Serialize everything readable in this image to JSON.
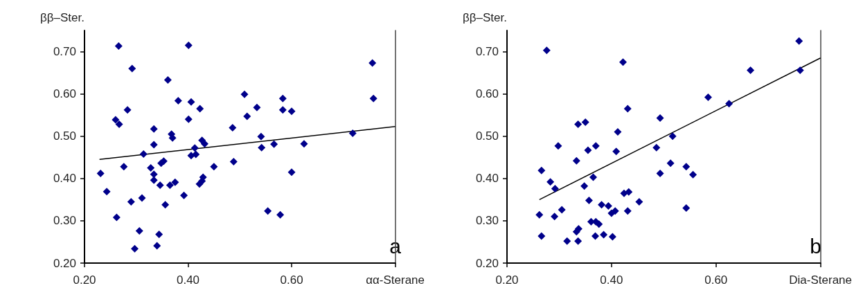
{
  "chart_data": [
    {
      "type": "scatter",
      "xlabel": "αα-Sterane",
      "ylabel": "ββ–Ster.",
      "annotations": [
        "a"
      ],
      "marker": "diamond",
      "grid": false,
      "xlim": [
        0.2,
        0.8
      ],
      "ylim": [
        0.2,
        0.75
      ],
      "xticks": [
        {
          "value": 0.2,
          "label": "0.20"
        },
        {
          "value": 0.4,
          "label": "0.40"
        },
        {
          "value": 0.6,
          "label": "0.60"
        },
        {
          "value": 0.8,
          "label": null
        }
      ],
      "yticks": [
        {
          "value": 0.2,
          "label": "0.20"
        },
        {
          "value": 0.3,
          "label": "0.30"
        },
        {
          "value": 0.4,
          "label": "0.40"
        },
        {
          "value": 0.5,
          "label": "0.50"
        },
        {
          "value": 0.6,
          "label": "0.60"
        },
        {
          "value": 0.7,
          "label": "0.70"
        }
      ],
      "series": [
        {
          "color": "#00008b",
          "x": [
            0.266,
            0.401,
            0.292,
            0.361,
            0.381,
            0.406,
            0.423,
            0.283,
            0.26,
            0.267,
            0.401,
            0.334,
            0.486,
            0.368,
            0.37,
            0.427,
            0.432,
            0.334,
            0.413,
            0.406,
            0.415,
            0.314,
            0.353,
            0.348,
            0.488,
            0.276,
            0.45,
            0.231,
            0.328,
            0.334,
            0.429,
            0.334,
            0.427,
            0.422,
            0.375,
            0.365,
            0.346,
            0.243,
            0.392,
            0.29,
            0.311,
            0.356,
            0.262,
            0.306,
            0.344,
            0.34,
            0.297,
            0.756,
            0.758,
            0.509,
            0.583,
            0.533,
            0.583,
            0.6,
            0.514,
            0.541,
            0.542,
            0.566,
            0.624,
            0.718,
            0.6,
            0.554,
            0.578
          ],
          "values": [
            0.713,
            0.715,
            0.66,
            0.633,
            0.584,
            0.581,
            0.565,
            0.562,
            0.539,
            0.528,
            0.54,
            0.517,
            0.52,
            0.505,
            0.496,
            0.49,
            0.482,
            0.48,
            0.472,
            0.454,
            0.457,
            0.458,
            0.441,
            0.436,
            0.44,
            0.428,
            0.428,
            0.412,
            0.425,
            0.41,
            0.403,
            0.396,
            0.394,
            0.387,
            0.391,
            0.384,
            0.384,
            0.369,
            0.36,
            0.345,
            0.354,
            0.338,
            0.308,
            0.276,
            0.268,
            0.241,
            0.234,
            0.673,
            0.589,
            0.599,
            0.589,
            0.568,
            0.562,
            0.559,
            0.547,
            0.499,
            0.473,
            0.481,
            0.482,
            0.507,
            0.415,
            0.323,
            0.314
          ]
        },
        {
          "type": "line",
          "marker": "none",
          "color": "#000000",
          "x": [
            0.229,
            0.8
          ],
          "values": [
            0.445,
            0.523
          ]
        }
      ]
    },
    {
      "type": "scatter",
      "xlabel": "Dia-Sterane",
      "ylabel": "ββ–Ster.",
      "annotations": [
        "b"
      ],
      "marker": "diamond",
      "grid": false,
      "xlim": [
        0.2,
        0.8
      ],
      "ylim": [
        0.2,
        0.75
      ],
      "xticks": [
        {
          "value": 0.2,
          "label": "0.20"
        },
        {
          "value": 0.4,
          "label": "0.40"
        },
        {
          "value": 0.6,
          "label": "0.60"
        },
        {
          "value": 0.8,
          "label": null
        }
      ],
      "yticks": [
        {
          "value": 0.2,
          "label": "0.20"
        },
        {
          "value": 0.3,
          "label": "0.30"
        },
        {
          "value": 0.4,
          "label": "0.40"
        },
        {
          "value": 0.5,
          "label": "0.50"
        },
        {
          "value": 0.6,
          "label": "0.60"
        },
        {
          "value": 0.7,
          "label": "0.70"
        }
      ],
      "series": [
        {
          "color": "#00008b",
          "x": [
            0.276,
            0.422,
            0.431,
            0.336,
            0.35,
            0.412,
            0.298,
            0.37,
            0.355,
            0.409,
            0.333,
            0.266,
            0.365,
            0.283,
            0.292,
            0.348,
            0.357,
            0.381,
            0.394,
            0.424,
            0.433,
            0.305,
            0.262,
            0.291,
            0.361,
            0.37,
            0.376,
            0.4,
            0.407,
            0.431,
            0.453,
            0.543,
            0.333,
            0.337,
            0.266,
            0.315,
            0.336,
            0.369,
            0.385,
            0.402,
            0.759,
            0.761,
            0.666,
            0.585,
            0.625,
            0.493,
            0.517,
            0.486,
            0.513,
            0.493,
            0.543,
            0.556
          ],
          "values": [
            0.703,
            0.675,
            0.565,
            0.528,
            0.533,
            0.51,
            0.477,
            0.477,
            0.467,
            0.464,
            0.442,
            0.419,
            0.403,
            0.392,
            0.376,
            0.382,
            0.348,
            0.338,
            0.335,
            0.365,
            0.368,
            0.326,
            0.314,
            0.31,
            0.298,
            0.298,
            0.292,
            0.318,
            0.323,
            0.323,
            0.345,
            0.33,
            0.274,
            0.281,
            0.264,
            0.252,
            0.252,
            0.264,
            0.267,
            0.262,
            0.725,
            0.656,
            0.656,
            0.592,
            0.577,
            0.543,
            0.5,
            0.473,
            0.436,
            0.412,
            0.428,
            0.409
          ]
        },
        {
          "type": "line",
          "marker": "none",
          "color": "#000000",
          "x": [
            0.262,
            0.8
          ],
          "values": [
            0.35,
            0.685
          ]
        }
      ]
    }
  ]
}
